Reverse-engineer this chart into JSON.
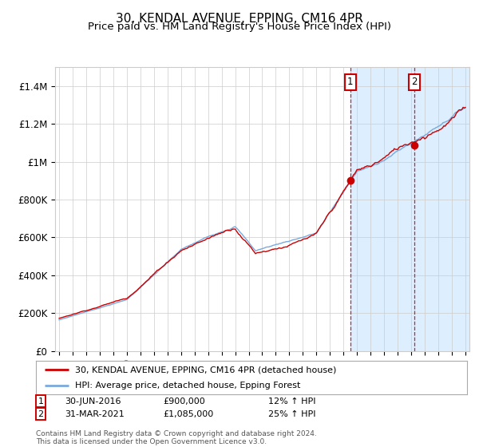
{
  "title": "30, KENDAL AVENUE, EPPING, CM16 4PR",
  "subtitle": "Price paid vs. HM Land Registry's House Price Index (HPI)",
  "ylim": [
    0,
    1500000
  ],
  "yticks": [
    0,
    200000,
    400000,
    600000,
    800000,
    1000000,
    1200000,
    1400000
  ],
  "ytick_labels": [
    "£0",
    "£200K",
    "£400K",
    "£600K",
    "£800K",
    "£1M",
    "£1.2M",
    "£1.4M"
  ],
  "x_start_year": 1995,
  "x_end_year": 2025,
  "sale1_year": 2016.5,
  "sale1_price": 900000,
  "sale2_year": 2021.25,
  "sale2_price": 1085000,
  "red_line_color": "#cc0000",
  "blue_line_color": "#7aaadd",
  "shaded_color": "#ddeeff",
  "dashed_line_color": "#cc0000",
  "legend1": "30, KENDAL AVENUE, EPPING, CM16 4PR (detached house)",
  "legend2": "HPI: Average price, detached house, Epping Forest",
  "annotation1_label": "1",
  "annotation1_date": "30-JUN-2016",
  "annotation1_price": "£900,000",
  "annotation1_hpi": "12% ↑ HPI",
  "annotation2_label": "2",
  "annotation2_date": "31-MAR-2021",
  "annotation2_price": "£1,085,000",
  "annotation2_hpi": "25% ↑ HPI",
  "footer": "Contains HM Land Registry data © Crown copyright and database right 2024.\nThis data is licensed under the Open Government Licence v3.0.",
  "background_color": "#ffffff",
  "plot_bg_color": "#ffffff",
  "title_fontsize": 11,
  "subtitle_fontsize": 9.5
}
